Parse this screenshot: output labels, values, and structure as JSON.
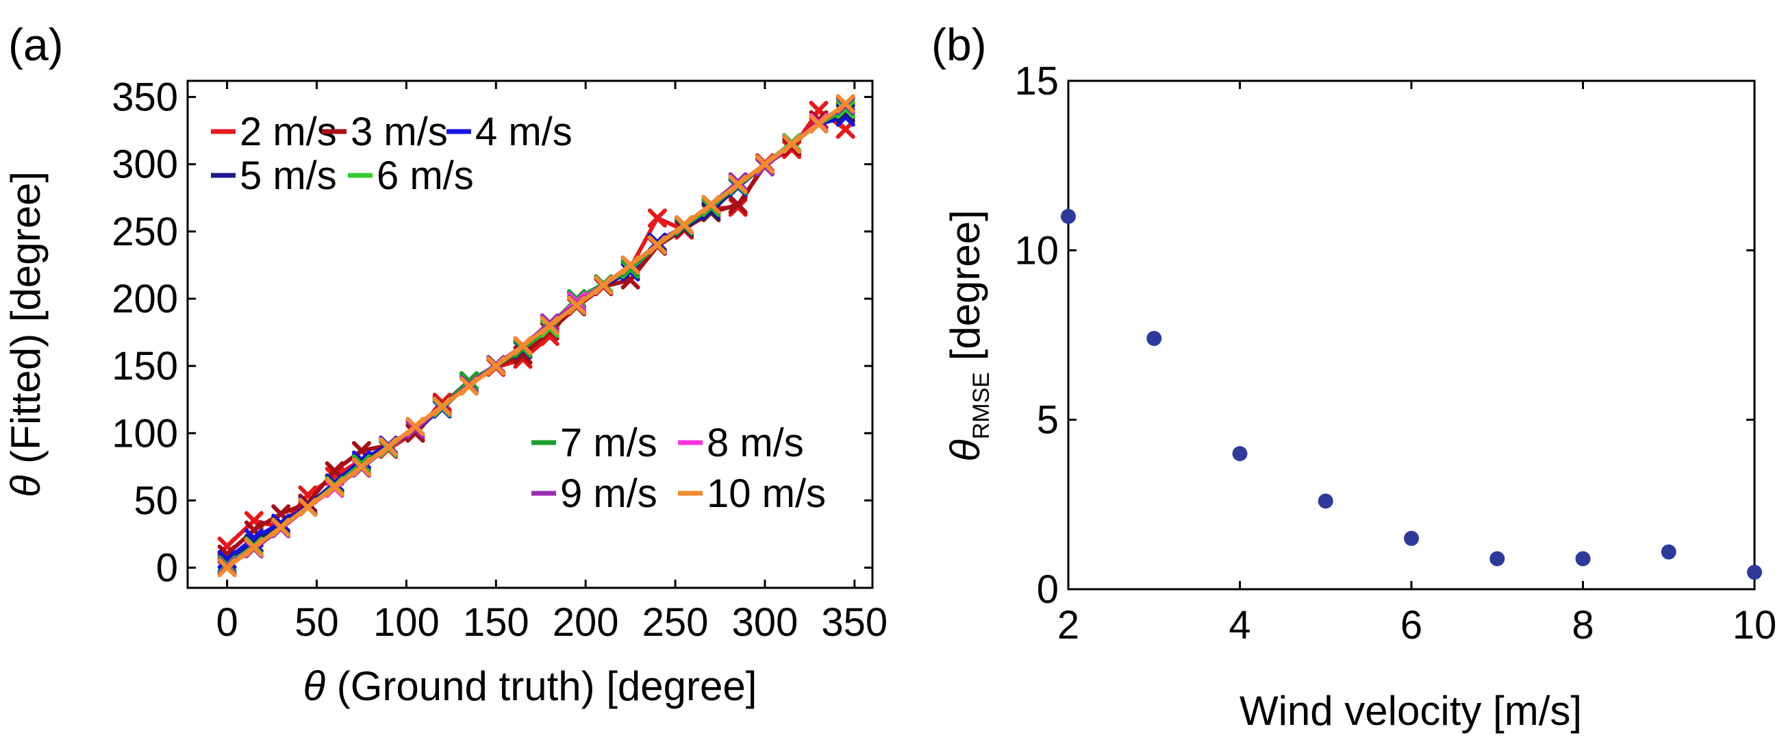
{
  "chart_data": [
    {
      "panel_label": "(a)",
      "type": "line",
      "xlabel_symbol": "θ",
      "xlabel_rest": " (Ground truth) [degree]",
      "ylabel_symbol": "θ",
      "ylabel_rest": " (Fitted) [degree]",
      "xlim": [
        -22,
        360
      ],
      "ylim": [
        -15,
        362
      ],
      "xticks": [
        0,
        50,
        100,
        150,
        200,
        250,
        300,
        350
      ],
      "yticks": [
        0,
        50,
        100,
        150,
        200,
        250,
        300,
        350
      ],
      "legend_upper": [
        "2 m/s",
        "3 m/s",
        "4 m/s",
        "5 m/s",
        "6 m/s"
      ],
      "legend_lower": [
        "7 m/s",
        "8 m/s",
        "9 m/s",
        "10 m/s"
      ],
      "x": [
        0,
        15,
        30,
        45,
        60,
        75,
        90,
        105,
        120,
        135,
        150,
        165,
        180,
        195,
        210,
        225,
        240,
        255,
        270,
        285,
        300,
        315,
        330,
        345
      ],
      "series": [
        {
          "name": "2 m/s",
          "color": "#e41a1c",
          "values": [
            16,
            35,
            30,
            54,
            68,
            80,
            88,
            101,
            123,
            136,
            149,
            155,
            172,
            200,
            210,
            223,
            260,
            251,
            267,
            268,
            301,
            311,
            340,
            326
          ]
        },
        {
          "name": "3 m/s",
          "color": "#a50f15",
          "values": [
            10,
            28,
            40,
            48,
            72,
            87,
            91,
            100,
            121,
            139,
            150,
            158,
            176,
            194,
            209,
            214,
            239,
            252,
            264,
            270,
            299,
            313,
            333,
            340
          ]
        },
        {
          "name": "4 m/s",
          "color": "#1515e0",
          "values": [
            6,
            22,
            33,
            46,
            63,
            80,
            91,
            103,
            118,
            138,
            150,
            163,
            178,
            199,
            210,
            220,
            242,
            254,
            268,
            283,
            300,
            316,
            330,
            335
          ]
        },
        {
          "name": "5 m/s",
          "color": "#1a1a8a",
          "values": [
            3,
            18,
            31,
            46,
            62,
            78,
            90,
            104,
            119,
            136,
            151,
            162,
            180,
            198,
            210,
            221,
            241,
            253,
            265,
            284,
            299,
            315,
            331,
            338
          ]
        },
        {
          "name": "6 m/s",
          "color": "#33cc33",
          "values": [
            2,
            16,
            29,
            45,
            61,
            77,
            89,
            104,
            119,
            137,
            151,
            163,
            178,
            198,
            211,
            222,
            240,
            254,
            268,
            285,
            300,
            316,
            330,
            341
          ]
        },
        {
          "name": "7 m/s",
          "color": "#1e9e2e",
          "values": [
            1,
            15,
            30,
            45,
            60,
            76,
            90,
            104,
            120,
            139,
            150,
            163,
            180,
            200,
            211,
            223,
            240,
            254,
            269,
            284,
            300,
            315,
            330,
            343
          ]
        },
        {
          "name": "8 m/s",
          "color": "#ff33dd",
          "values": [
            1,
            15,
            29,
            45,
            59,
            75,
            90,
            105,
            120,
            136,
            150,
            165,
            181,
            198,
            210,
            225,
            240,
            255,
            270,
            285,
            300,
            315,
            331,
            344
          ]
        },
        {
          "name": "9 m/s",
          "color": "#9b2fae",
          "values": [
            1,
            14,
            29,
            45,
            60,
            74,
            90,
            103,
            120,
            136,
            151,
            165,
            182,
            196,
            210,
            225,
            240,
            255,
            270,
            287,
            298,
            315,
            330,
            344
          ]
        },
        {
          "name": "10 m/s",
          "color": "#f28a30",
          "values": [
            0,
            15,
            30,
            45,
            60,
            75,
            90,
            105,
            120,
            135,
            150,
            165,
            180,
            195,
            210,
            225,
            240,
            255,
            270,
            285,
            300,
            315,
            330,
            345
          ]
        }
      ]
    },
    {
      "panel_label": "(b)",
      "type": "scatter",
      "xlabel": "Wind velocity [m/s]",
      "ylabel_symbol": "θ",
      "ylabel_sub": "RMSE",
      "ylabel_rest": " [degree]",
      "xlim": [
        2,
        10
      ],
      "ylim": [
        0,
        15
      ],
      "xticks": [
        2,
        4,
        6,
        8,
        10
      ],
      "yticks": [
        0,
        5,
        10,
        15
      ],
      "marker_color": "#2e3a9a",
      "x": [
        2,
        3,
        4,
        5,
        6,
        7,
        8,
        9,
        10
      ],
      "y": [
        11.0,
        7.4,
        4.0,
        2.6,
        1.5,
        0.9,
        0.9,
        1.1,
        0.5
      ]
    }
  ]
}
